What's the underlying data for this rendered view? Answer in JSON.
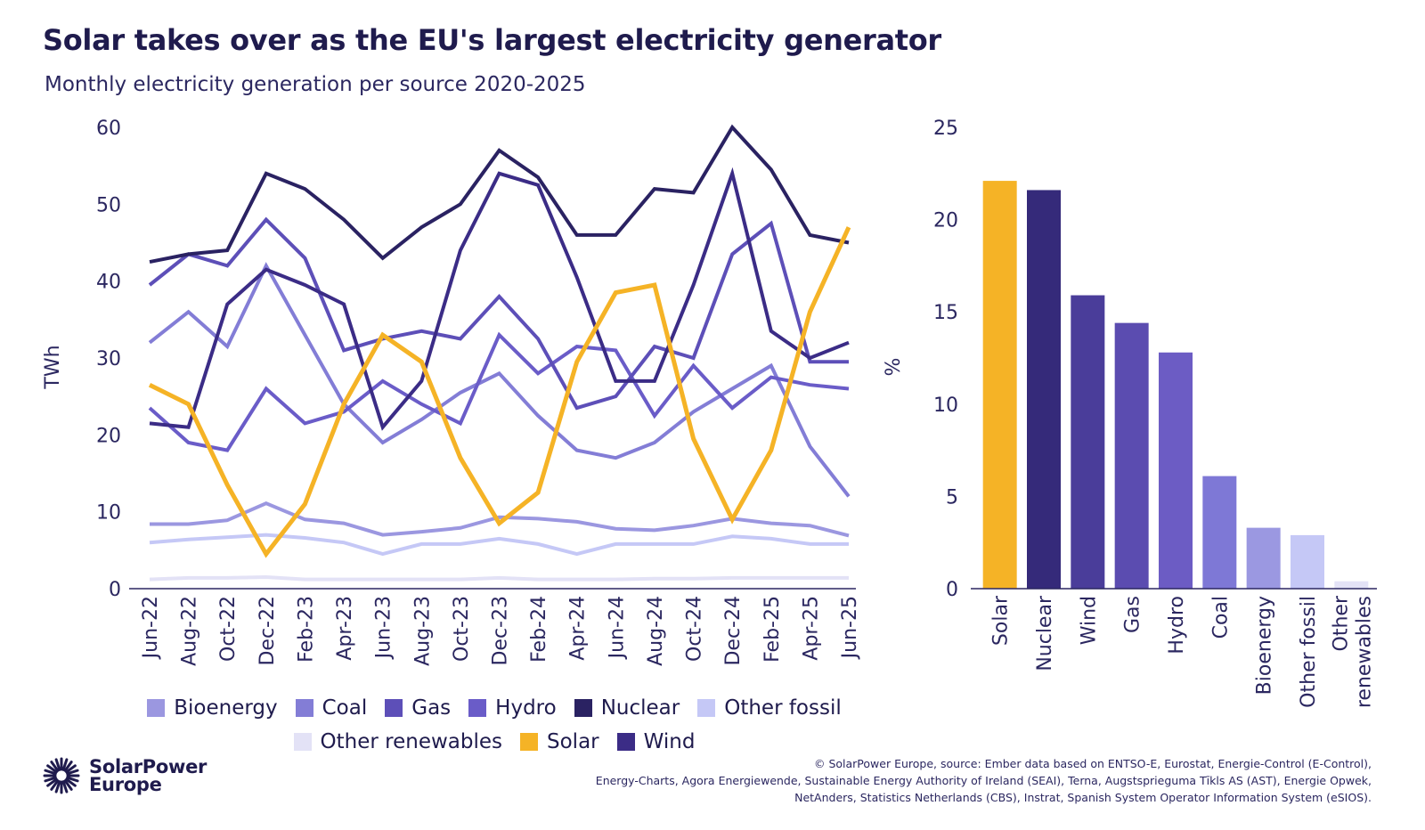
{
  "title": "Solar takes over as the EU's largest electricity generator",
  "subtitle": "Monthly electricity generation per source 2020-2025",
  "chart_data": [
    {
      "type": "line",
      "ylabel": "TWh",
      "xlabel": "",
      "ylim": [
        0,
        60
      ],
      "yticks": [
        "0",
        "10",
        "20",
        "30",
        "40",
        "50",
        "60"
      ],
      "categories": [
        "Jun-22",
        "Aug-22",
        "Oct-22",
        "Dec-22",
        "Feb-23",
        "Apr-23",
        "Jun-23",
        "Aug-23",
        "Oct-23",
        "Dec-23",
        "Feb-24",
        "Apr-24",
        "Jun-24",
        "Aug-24",
        "Oct-24",
        "Dec-24",
        "Feb-25",
        "Apr-25",
        "Jun-25"
      ],
      "series": [
        {
          "name": "Other renewables",
          "color": "#e3e2f6",
          "values": [
            1.2,
            1.4,
            1.4,
            1.5,
            1.2,
            1.2,
            1.2,
            1.2,
            1.2,
            1.4,
            1.2,
            1.2,
            1.2,
            1.3,
            1.3,
            1.4,
            1.4,
            1.4,
            1.4
          ]
        },
        {
          "name": "Other fossil",
          "color": "#c5c8f6",
          "values": [
            6.0,
            6.4,
            6.7,
            7.0,
            6.6,
            6.0,
            4.5,
            5.8,
            5.8,
            6.5,
            5.8,
            4.5,
            5.8,
            5.8,
            5.8,
            6.8,
            6.5,
            5.8,
            5.8
          ]
        },
        {
          "name": "Bioenergy",
          "color": "#9b97e0",
          "values": [
            8.4,
            8.4,
            8.9,
            11.1,
            9.0,
            8.5,
            7.0,
            7.4,
            7.9,
            9.3,
            9.1,
            8.7,
            7.8,
            7.6,
            8.2,
            9.1,
            8.5,
            8.2,
            6.9
          ]
        },
        {
          "name": "Coal",
          "color": "#837dd6",
          "values": [
            32.0,
            36.0,
            31.5,
            42.0,
            33.0,
            24.0,
            19.0,
            22.0,
            25.5,
            28.0,
            22.5,
            18.0,
            17.0,
            19.0,
            23.0,
            26.0,
            29.0,
            18.5,
            12.0
          ]
        },
        {
          "name": "Hydro",
          "color": "#6a5cc8",
          "values": [
            23.5,
            19.0,
            18.0,
            26.0,
            21.5,
            23.0,
            27.0,
            24.0,
            21.5,
            33.0,
            28.0,
            31.5,
            31.0,
            22.5,
            29.0,
            23.5,
            27.5,
            26.5,
            26.0
          ]
        },
        {
          "name": "Gas",
          "color": "#5d4fb8",
          "values": [
            39.5,
            43.5,
            42.0,
            48.0,
            43.0,
            31.0,
            32.5,
            33.5,
            32.5,
            38.0,
            32.5,
            23.5,
            25.0,
            31.5,
            30.0,
            43.5,
            47.5,
            29.5,
            29.5
          ]
        },
        {
          "name": "Wind",
          "color": "#3b2c86",
          "values": [
            21.5,
            21.0,
            37.0,
            41.5,
            39.5,
            37.0,
            21.0,
            27.0,
            44.0,
            54.0,
            52.5,
            40.5,
            27.0,
            27.0,
            39.5,
            54.0,
            33.5,
            30.0,
            32.0
          ]
        },
        {
          "name": "Nuclear",
          "color": "#2a2262",
          "values": [
            42.5,
            43.5,
            44.0,
            54.0,
            52.0,
            48.0,
            43.0,
            47.0,
            50.0,
            57.0,
            53.5,
            46.0,
            46.0,
            52.0,
            51.5,
            60.0,
            54.5,
            46.0,
            45.0
          ]
        },
        {
          "name": "Solar",
          "color": "#f5b326",
          "values": [
            26.5,
            24.0,
            13.5,
            4.5,
            11.0,
            24.0,
            33.0,
            29.5,
            17.0,
            8.5,
            12.5,
            29.5,
            38.5,
            39.5,
            19.5,
            9.0,
            18.0,
            36.0,
            47.0
          ]
        }
      ]
    },
    {
      "type": "bar",
      "ylabel": "%",
      "ylim": [
        0,
        25
      ],
      "yticks": [
        "0",
        "5",
        "10",
        "15",
        "20",
        "25"
      ],
      "categories": [
        "Solar",
        "Nuclear",
        "Wind",
        "Gas",
        "Hydro",
        "Coal",
        "Bioenergy",
        "Other fossil",
        "Other renewables"
      ],
      "category_lines": [
        [
          "Solar"
        ],
        [
          "Nuclear"
        ],
        [
          "Wind"
        ],
        [
          "Gas"
        ],
        [
          "Hydro"
        ],
        [
          "Coal"
        ],
        [
          "Bioenergy"
        ],
        [
          "Other fossil"
        ],
        [
          "Other",
          "renewables"
        ]
      ],
      "values": [
        22.1,
        21.6,
        15.9,
        14.4,
        12.8,
        6.1,
        3.3,
        2.9,
        0.4
      ],
      "colors": [
        "#f5b326",
        "#352a7a",
        "#4a3d9a",
        "#5b4cb0",
        "#6c5cc4",
        "#7e78d6",
        "#9b98e1",
        "#c5c8f6",
        "#e3e2f6"
      ]
    }
  ],
  "legend": [
    {
      "label": "Bioenergy",
      "color": "#9b97e0"
    },
    {
      "label": "Coal",
      "color": "#837dd6"
    },
    {
      "label": "Gas",
      "color": "#5d4fb8"
    },
    {
      "label": "Hydro",
      "color": "#6a5cc8"
    },
    {
      "label": "Nuclear",
      "color": "#2a2262"
    },
    {
      "label": "Other fossil",
      "color": "#c5c8f6"
    },
    {
      "label": "Other renewables",
      "color": "#e3e2f6"
    },
    {
      "label": "Solar",
      "color": "#f5b326"
    },
    {
      "label": "Wind",
      "color": "#3b2c86"
    }
  ],
  "logo": {
    "line1": "SolarPower",
    "line2": "Europe",
    "icon": "sun-burst-icon"
  },
  "source": {
    "line1": "© SolarPower Europe, source: Ember data based on ENTSO-E, Eurostat, Energie-Control (E-Control),",
    "line2": "Energy-Charts, Agora Energiewende, Sustainable Energy Authority of Ireland (SEAI), Terna, Augstsprieguma Tīkls AS (AST), Energie Opwek,",
    "line3": "NetAnders, Statistics Netherlands (CBS), Instrat, Spanish System Operator Information System (eSIOS)."
  }
}
